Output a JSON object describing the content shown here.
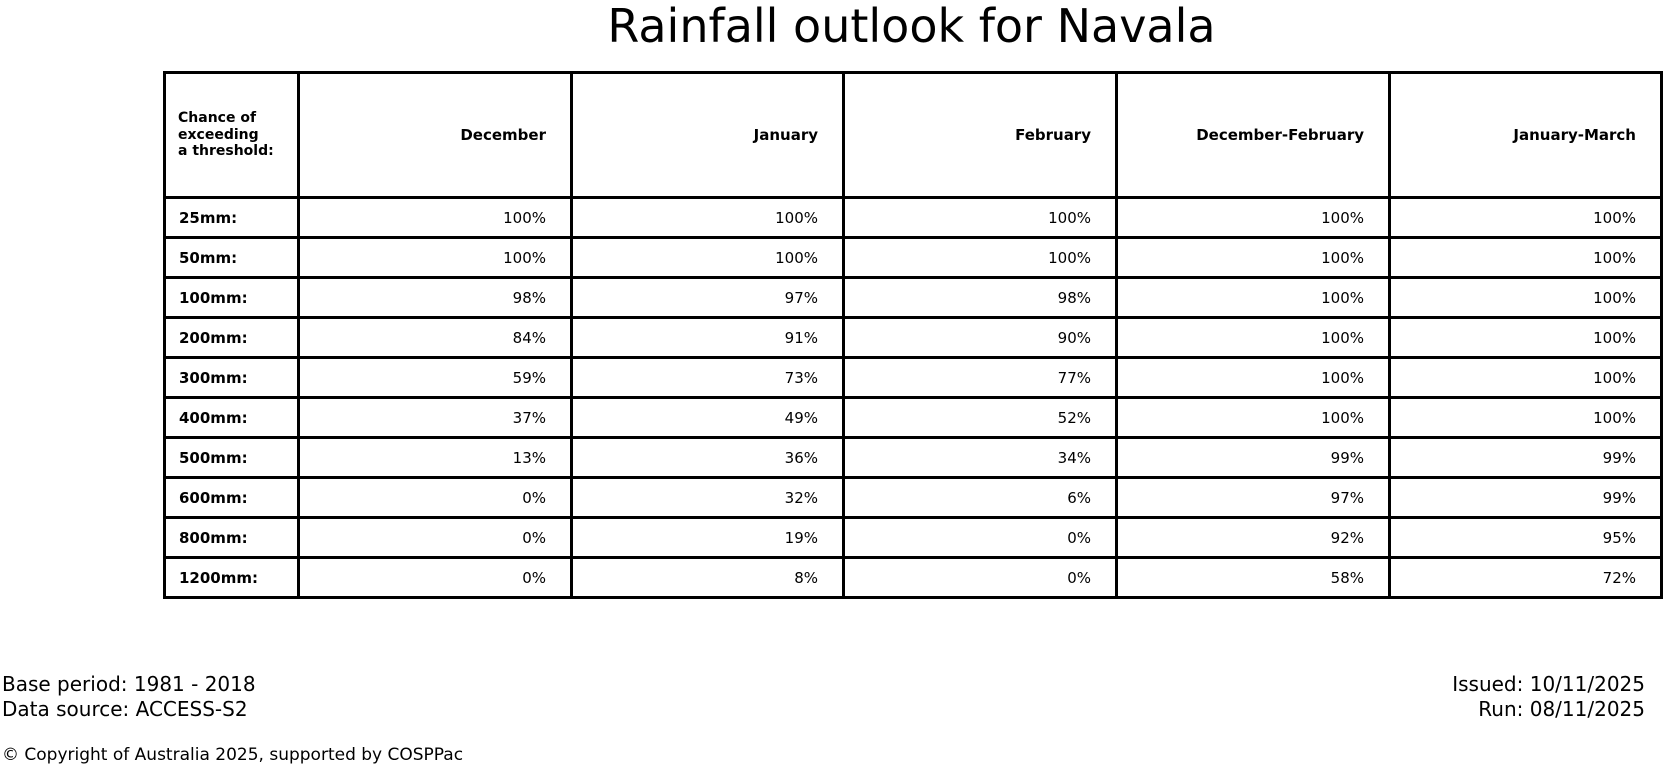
{
  "title": "Rainfall outlook for Navala",
  "chart_data": {
    "type": "table",
    "title": "Rainfall outlook for Navala",
    "corner_label": "Chance of\nexceeding\na threshold:",
    "columns": [
      "December",
      "January",
      "February",
      "December-February",
      "January-March"
    ],
    "rows": [
      {
        "label": "25mm:",
        "values": [
          "100%",
          "100%",
          "100%",
          "100%",
          "100%"
        ]
      },
      {
        "label": "50mm:",
        "values": [
          "100%",
          "100%",
          "100%",
          "100%",
          "100%"
        ]
      },
      {
        "label": "100mm:",
        "values": [
          "98%",
          "97%",
          "98%",
          "100%",
          "100%"
        ]
      },
      {
        "label": "200mm:",
        "values": [
          "84%",
          "91%",
          "90%",
          "100%",
          "100%"
        ]
      },
      {
        "label": "300mm:",
        "values": [
          "59%",
          "73%",
          "77%",
          "100%",
          "100%"
        ]
      },
      {
        "label": "400mm:",
        "values": [
          "37%",
          "49%",
          "52%",
          "100%",
          "100%"
        ]
      },
      {
        "label": "500mm:",
        "values": [
          "13%",
          "36%",
          "34%",
          "99%",
          "99%"
        ]
      },
      {
        "label": "600mm:",
        "values": [
          "0%",
          "32%",
          "6%",
          "97%",
          "99%"
        ]
      },
      {
        "label": "800mm:",
        "values": [
          "0%",
          "19%",
          "0%",
          "92%",
          "95%"
        ]
      },
      {
        "label": "1200mm:",
        "values": [
          "0%",
          "8%",
          "0%",
          "58%",
          "72%"
        ]
      }
    ],
    "layout": {
      "value_alignment": "right",
      "grid": "all-borders",
      "border_color": "#000000",
      "background_color": "#ffffff",
      "text_color": "#000000"
    }
  },
  "footer": {
    "base_period": "Base period: 1981 - 2018",
    "data_source": "Data source: ACCESS-S2",
    "issued": "Issued: 10/11/2025",
    "run": "Run: 08/11/2025",
    "copyright": "© Copyright of Australia 2025, supported by COSPPac"
  }
}
